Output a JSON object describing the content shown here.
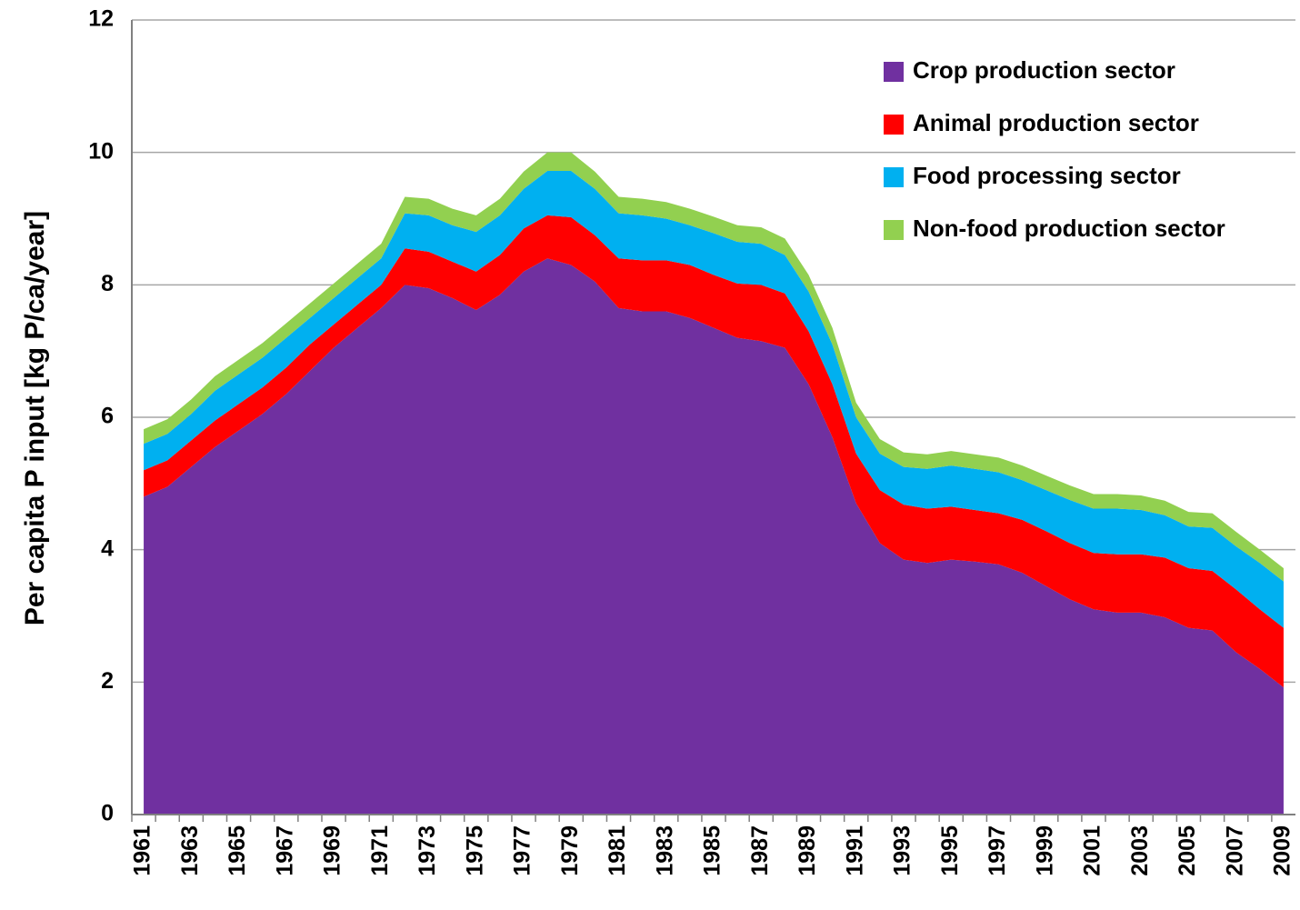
{
  "chart_data": {
    "type": "stacked_area",
    "ylabel": "Per capita P input [kg P/ca/year]",
    "categories": [
      "1961",
      null,
      "1963",
      null,
      "1965",
      null,
      "1967",
      null,
      "1969",
      null,
      "1971",
      null,
      "1973",
      null,
      "1975",
      null,
      "1977",
      null,
      "1979",
      null,
      "1981",
      null,
      "1983",
      null,
      "1985",
      null,
      "1987",
      null,
      "1989",
      null,
      "1991",
      null,
      "1993",
      null,
      "1995",
      null,
      "1997",
      null,
      "1999",
      null,
      "2001",
      null,
      "2003",
      null,
      "2005",
      null,
      "2007",
      null,
      "2009"
    ],
    "series": [
      {
        "name": "Crop production sector",
        "color": "#7030a0",
        "values": [
          4.8,
          4.95,
          5.25,
          5.55,
          5.8,
          6.05,
          6.35,
          6.7,
          7.05,
          7.35,
          7.65,
          8.0,
          7.95,
          7.8,
          7.62,
          7.85,
          8.2,
          8.4,
          8.3,
          8.05,
          7.65,
          7.6,
          7.6,
          7.5,
          7.35,
          7.2,
          7.15,
          7.05,
          6.5,
          5.7,
          4.7,
          4.1,
          3.85,
          3.8,
          3.85,
          3.82,
          3.78,
          3.65,
          3.45,
          3.25,
          3.1,
          3.05,
          3.05,
          2.98,
          2.82,
          2.78,
          2.45,
          2.2,
          1.92
        ]
      },
      {
        "name": "Animal production sector",
        "color": "#ff0000",
        "values": [
          0.4,
          0.4,
          0.4,
          0.4,
          0.4,
          0.4,
          0.4,
          0.4,
          0.35,
          0.35,
          0.35,
          0.55,
          0.55,
          0.55,
          0.58,
          0.6,
          0.65,
          0.65,
          0.72,
          0.7,
          0.75,
          0.77,
          0.77,
          0.8,
          0.8,
          0.82,
          0.85,
          0.82,
          0.8,
          0.8,
          0.75,
          0.8,
          0.83,
          0.82,
          0.8,
          0.78,
          0.77,
          0.8,
          0.83,
          0.85,
          0.85,
          0.88,
          0.88,
          0.9,
          0.9,
          0.9,
          0.95,
          0.9,
          0.9
        ]
      },
      {
        "name": "Food processing sector",
        "color": "#00b0f0",
        "values": [
          0.4,
          0.4,
          0.4,
          0.45,
          0.45,
          0.45,
          0.45,
          0.4,
          0.4,
          0.4,
          0.4,
          0.53,
          0.55,
          0.55,
          0.6,
          0.6,
          0.6,
          0.67,
          0.7,
          0.7,
          0.68,
          0.68,
          0.63,
          0.6,
          0.63,
          0.63,
          0.62,
          0.58,
          0.6,
          0.6,
          0.55,
          0.55,
          0.57,
          0.6,
          0.62,
          0.62,
          0.62,
          0.6,
          0.62,
          0.65,
          0.67,
          0.69,
          0.67,
          0.64,
          0.63,
          0.65,
          0.65,
          0.7,
          0.7
        ]
      },
      {
        "name": "Non-food production sector",
        "color": "#92d050",
        "values": [
          0.22,
          0.22,
          0.22,
          0.22,
          0.22,
          0.22,
          0.22,
          0.22,
          0.22,
          0.22,
          0.22,
          0.25,
          0.25,
          0.25,
          0.25,
          0.25,
          0.26,
          0.28,
          0.28,
          0.26,
          0.25,
          0.25,
          0.25,
          0.25,
          0.25,
          0.25,
          0.25,
          0.25,
          0.25,
          0.25,
          0.22,
          0.22,
          0.22,
          0.22,
          0.22,
          0.22,
          0.22,
          0.22,
          0.22,
          0.22,
          0.22,
          0.22,
          0.22,
          0.22,
          0.22,
          0.22,
          0.22,
          0.2,
          0.2
        ]
      }
    ],
    "ylim": [
      0,
      12
    ],
    "yticks": [
      0,
      2,
      4,
      6,
      8,
      10,
      12
    ],
    "grid": true,
    "legend": "upper right"
  }
}
